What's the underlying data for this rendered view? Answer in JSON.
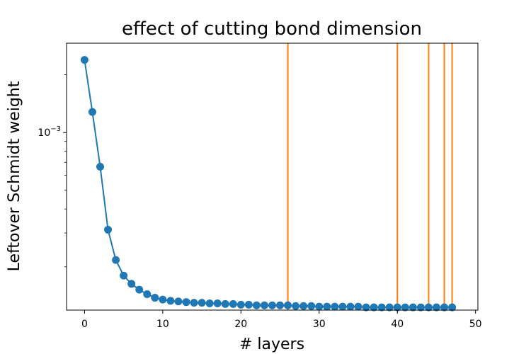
{
  "chart_data": {
    "type": "line",
    "title": "effect of cutting bond dimension",
    "xlabel": "# layers",
    "ylabel": "Leftover Schmidt weight",
    "xlim": [
      -2.3,
      50.3
    ],
    "ylim": [
      0.000119,
      0.00292
    ],
    "yscale": "log",
    "grid": false,
    "xticks": [
      0,
      10,
      20,
      30,
      40,
      50
    ],
    "xtick_labels": [
      "0",
      "10",
      "20",
      "30",
      "40",
      "50"
    ],
    "yticks": [
      0.001
    ],
    "ytick_labels": [
      {
        "base": "10",
        "exp": "−3"
      }
    ],
    "series": [
      {
        "color": "#1f77b4",
        "marker": "circle",
        "x": [
          0,
          1,
          2,
          3,
          4,
          5,
          6,
          7,
          8,
          9,
          10,
          11,
          12,
          13,
          14,
          15,
          16,
          17,
          18,
          19,
          20,
          21,
          22,
          23,
          24,
          25,
          26,
          27,
          28,
          29,
          30,
          31,
          32,
          33,
          34,
          35,
          36,
          37,
          38,
          39,
          40,
          41,
          42,
          43,
          44,
          45,
          46,
          47
        ],
        "y": [
          0.00239,
          0.00128,
          0.000664,
          0.000312,
          0.000217,
          0.00018,
          0.000163,
          0.000152,
          0.000144,
          0.000138,
          0.000135,
          0.000133,
          0.000132,
          0.000131,
          0.00013,
          0.00013,
          0.000129,
          0.000129,
          0.000128,
          0.000128,
          0.000127,
          0.000127,
          0.000126,
          0.000126,
          0.000126,
          0.000126,
          0.000126,
          0.000125,
          0.000125,
          0.000125,
          0.000124,
          0.000124,
          0.000124,
          0.000124,
          0.000124,
          0.000124,
          0.000123,
          0.000123,
          0.000123,
          0.000123,
          0.000123,
          0.000123,
          0.000123,
          0.000123,
          0.000123,
          0.000123,
          0.000123,
          0.000123
        ]
      }
    ],
    "vlines": {
      "color": "#ff7f0e",
      "x": [
        26,
        40,
        44,
        46,
        47
      ]
    }
  }
}
